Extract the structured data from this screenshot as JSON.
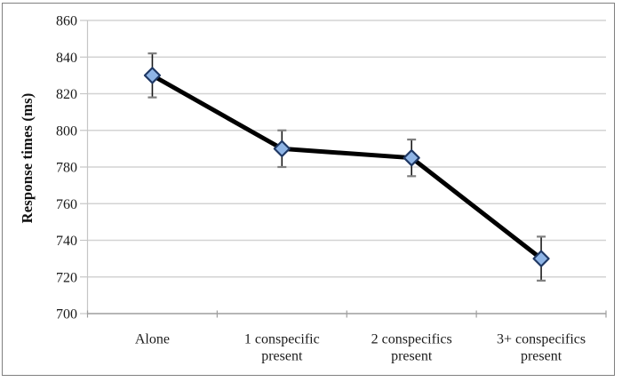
{
  "chart_data": {
    "type": "line",
    "categories": [
      [
        "Alone"
      ],
      [
        "1 conspecific",
        "present"
      ],
      [
        "2 conspecifics",
        "present"
      ],
      [
        "3+ conspecifics",
        "present"
      ]
    ],
    "values": [
      830,
      790,
      785,
      730
    ],
    "error_bars": {
      "plus": [
        12,
        10,
        10,
        12
      ],
      "minus": [
        12,
        10,
        10,
        12
      ]
    },
    "ylabel": "Response times (ms)",
    "ylim": [
      700,
      860
    ],
    "yticks": [
      700,
      720,
      740,
      760,
      780,
      800,
      820,
      840,
      860
    ],
    "grid": "horizontal",
    "legend": "none",
    "marker": "diamond",
    "colors": {
      "line": "#000000",
      "marker_fill": "#8FB5E6",
      "marker_border": "#1F3864",
      "gridline": "#D3D3D3",
      "x_axis": "#9E9E9E",
      "y_axis": "#C6C6C6",
      "tick_label": "#1A1A1A",
      "error_line": "#1A1A1A",
      "error_cap": "#7F7F7F",
      "frame_border": "#808080",
      "background": "#FFFFFF"
    }
  }
}
